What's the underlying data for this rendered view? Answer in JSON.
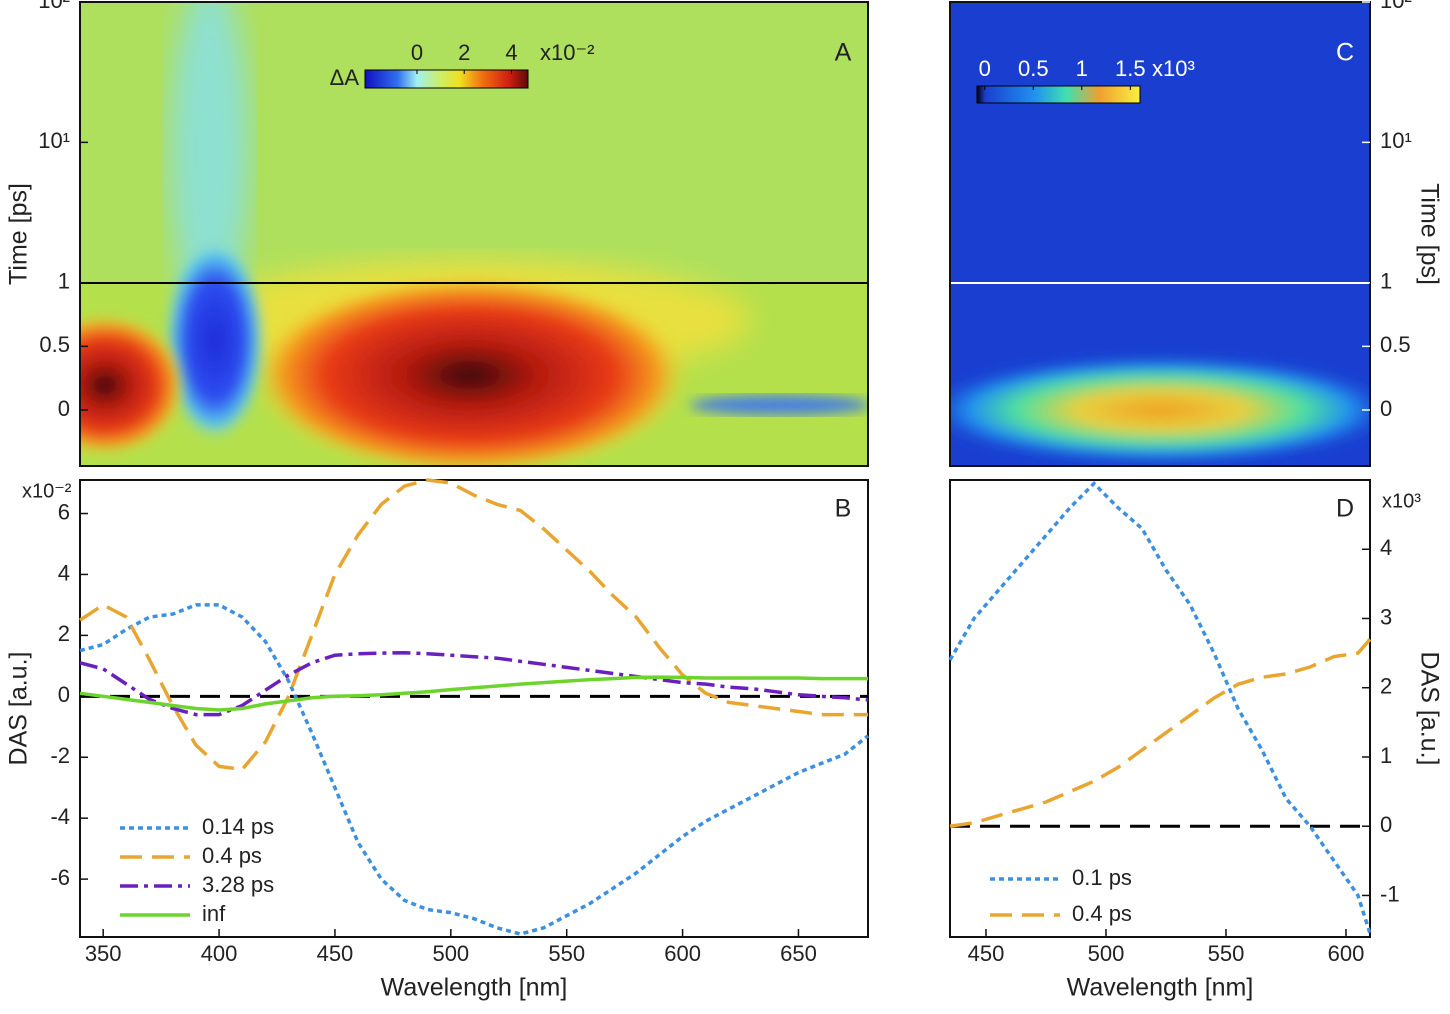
{
  "chart_data": [
    {
      "type": "heatmap",
      "panel_label": "A",
      "ylabel": "Time [ps]",
      "yscale": "linear-log",
      "linthresh": 1,
      "xlim": [
        340,
        680
      ],
      "ylim": [
        -0.44,
        100
      ],
      "yticks": [
        0,
        0.5,
        1,
        {
          "value": 10,
          "label": "10¹"
        },
        {
          "value": 100,
          "label": "10²"
        }
      ],
      "colorbar": {
        "label": "ΔA",
        "unit": "x10⁻²",
        "clim": [
          -2.2,
          4.7
        ],
        "ticks": [
          0,
          2,
          4
        ]
      }
    },
    {
      "type": "line",
      "panel_label": "B",
      "ylabel": "DAS [a.u.]",
      "xlabel": "Wavelength [nm]",
      "multiplier": "x10⁻²",
      "xlim": [
        340,
        680
      ],
      "ylim": [
        -7.9,
        7.1
      ],
      "xticks": [
        350,
        400,
        450,
        500,
        550,
        600,
        650
      ],
      "yticks": [
        -6,
        -4,
        -2,
        0,
        2,
        4,
        6
      ],
      "x": [
        340,
        350,
        360,
        370,
        380,
        390,
        400,
        410,
        420,
        430,
        440,
        450,
        460,
        470,
        480,
        490,
        500,
        510,
        520,
        530,
        540,
        550,
        560,
        570,
        580,
        590,
        600,
        610,
        620,
        630,
        640,
        650,
        660,
        670,
        680
      ],
      "series": [
        {
          "name": "0.14 ps",
          "color": "#3d8fe0",
          "style": "dotted",
          "values": [
            1.5,
            1.7,
            2.2,
            2.6,
            2.7,
            3.0,
            3.0,
            2.6,
            1.8,
            0.5,
            -1.2,
            -3.0,
            -4.8,
            -6.0,
            -6.7,
            -7.0,
            -7.1,
            -7.3,
            -7.6,
            -7.8,
            -7.6,
            -7.2,
            -6.8,
            -6.3,
            -5.8,
            -5.2,
            -4.6,
            -4.1,
            -3.7,
            -3.3,
            -2.9,
            -2.5,
            -2.2,
            -1.9,
            -1.3
          ]
        },
        {
          "name": "0.4 ps",
          "color": "#e8a530",
          "style": "dashed",
          "values": [
            2.5,
            3.0,
            2.6,
            1.2,
            -0.3,
            -1.6,
            -2.3,
            -2.4,
            -1.5,
            0.0,
            2.0,
            4.0,
            5.3,
            6.3,
            6.9,
            7.1,
            7.0,
            6.6,
            6.3,
            6.1,
            5.5,
            4.8,
            4.1,
            3.3,
            2.6,
            1.6,
            0.7,
            0.1,
            -0.2,
            -0.3,
            -0.4,
            -0.5,
            -0.6,
            -0.6,
            -0.6
          ]
        },
        {
          "name": "3.28 ps",
          "color": "#6a1fbf",
          "style": "dashdot",
          "values": [
            1.1,
            0.9,
            0.4,
            -0.1,
            -0.4,
            -0.6,
            -0.6,
            -0.3,
            0.2,
            0.7,
            1.1,
            1.35,
            1.4,
            1.42,
            1.43,
            1.4,
            1.35,
            1.3,
            1.25,
            1.15,
            1.05,
            0.95,
            0.85,
            0.75,
            0.65,
            0.55,
            0.45,
            0.4,
            0.3,
            0.25,
            0.15,
            0.05,
            0.0,
            -0.05,
            -0.12
          ]
        },
        {
          "name": "inf",
          "color": "#6dd42e",
          "style": "solid",
          "values": [
            0.1,
            0.0,
            -0.1,
            -0.2,
            -0.3,
            -0.4,
            -0.45,
            -0.4,
            -0.25,
            -0.15,
            -0.05,
            0.0,
            0.02,
            0.05,
            0.1,
            0.15,
            0.22,
            0.28,
            0.34,
            0.4,
            0.45,
            0.5,
            0.55,
            0.58,
            0.62,
            0.63,
            0.62,
            0.6,
            0.6,
            0.6,
            0.6,
            0.6,
            0.58,
            0.58,
            0.58
          ]
        }
      ]
    },
    {
      "type": "heatmap",
      "panel_label": "C",
      "ylabel": "Time [ps]",
      "yaxis_side": "right",
      "yscale": "linear-log",
      "linthresh": 1,
      "xlim": [
        435,
        610
      ],
      "ylim": [
        -0.44,
        100
      ],
      "yticks": [
        0,
        0.5,
        1,
        {
          "value": 10,
          "label": "10¹"
        },
        {
          "value": 100,
          "label": "10²"
        }
      ],
      "colorbar": {
        "unit": "x10³",
        "clim": [
          -0.08,
          1.6
        ],
        "ticks": [
          0,
          0.5,
          1,
          1.5
        ]
      }
    },
    {
      "type": "line",
      "panel_label": "D",
      "ylabel": "DAS [a.u.]",
      "xlabel": "Wavelength [nm]",
      "multiplier": "x10³",
      "yaxis_side": "right",
      "xlim": [
        435,
        610
      ],
      "ylim": [
        -1.6,
        5.0
      ],
      "xticks": [
        450,
        500,
        550,
        600
      ],
      "yticks": [
        -1,
        0,
        1,
        2,
        3,
        4
      ],
      "x": [
        435,
        445,
        455,
        465,
        475,
        485,
        495,
        505,
        515,
        525,
        535,
        545,
        555,
        565,
        575,
        585,
        595,
        605,
        610
      ],
      "series": [
        {
          "name": "0.1 ps",
          "color": "#3d8fe0",
          "style": "dotted",
          "values": [
            2.4,
            3.0,
            3.4,
            3.8,
            4.2,
            4.6,
            4.95,
            4.6,
            4.3,
            3.7,
            3.2,
            2.5,
            1.7,
            1.1,
            0.4,
            0.0,
            -0.5,
            -1.0,
            -1.55
          ]
        },
        {
          "name": "0.4 ps",
          "color": "#e8a530",
          "style": "dashed",
          "values": [
            0.0,
            0.05,
            0.15,
            0.25,
            0.35,
            0.5,
            0.65,
            0.85,
            1.1,
            1.35,
            1.6,
            1.85,
            2.05,
            2.15,
            2.2,
            2.3,
            2.45,
            2.5,
            2.7
          ]
        }
      ]
    }
  ]
}
